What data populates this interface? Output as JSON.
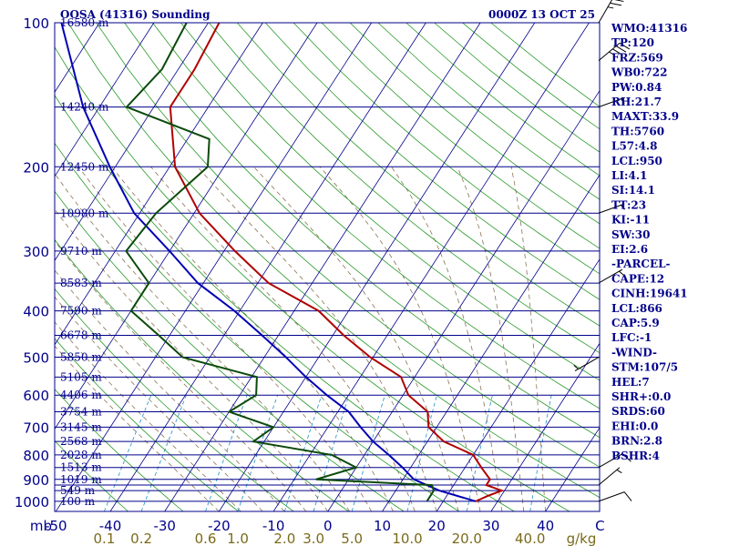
{
  "header": {
    "station": "OOSA (41316) Sounding",
    "valid": "0000Z 13 OCT 25"
  },
  "indices": [
    "WMO:41316",
    "TP:120",
    "FRZ:569",
    "WB0:722",
    "PW:0.84",
    "RH:21.7",
    "MAXT:33.9",
    "TH:5760",
    "L57:4.8",
    "LCL:950",
    "LI:4.1",
    "SI:14.1",
    "TT:23",
    "KI:-11",
    "SW:30",
    "EI:2.6",
    "-PARCEL-",
    "CAPE:12",
    "CINH:19641",
    "LCL:866",
    "CAP:5.9",
    "LFC:-1",
    "-WIND-",
    "STM:107/5",
    "HEL:7",
    "SHR+:0.0",
    "SRDS:60",
    "EHI:0.0",
    "BRN:2.8",
    "BSHR:4"
  ],
  "colors": {
    "frame": "#00008b",
    "isobar": "#00008b",
    "isotherm": "#00008b",
    "dry_adiabat": "#2a9a2a",
    "moist_adiabat": "#8b7355",
    "mixing_ratio": "#1e90c8",
    "temperature": "#b00000",
    "dewpoint": "#0b4a0b",
    "parcel": "#0000b4",
    "mixing_label": "#7a6a1a",
    "wind": "#000000"
  },
  "chart_data": {
    "type": "skew-t",
    "pressure_levels": [
      100,
      150,
      200,
      250,
      300,
      350,
      400,
      450,
      500,
      550,
      600,
      650,
      700,
      750,
      800,
      850,
      900,
      925,
      950,
      1000
    ],
    "pressure_tick_labels": [
      "100",
      "200",
      "300",
      "400",
      "500",
      "600",
      "700",
      "800",
      "900",
      "1000"
    ],
    "height_labels": [
      "16580 m",
      "14240 m",
      "12450 m",
      "10980 m",
      "9710 m",
      "8583 m",
      "7590 m",
      "6678 m",
      "5850 m",
      "5105 m",
      "4406 m",
      "3754 m",
      "3145 m",
      "2568 m",
      "2028 m",
      "1513 m",
      "1019 m",
      "549 m",
      "100 m"
    ],
    "height_label_pressures": [
      100,
      150,
      200,
      250,
      300,
      350,
      400,
      450,
      500,
      550,
      600,
      650,
      700,
      750,
      800,
      850,
      900,
      950,
      1000
    ],
    "x_unit_label": "mb",
    "temperature_tick_labels": [
      "-50",
      "-40",
      "-30",
      "-20",
      "-10",
      "0",
      "10",
      "20",
      "30",
      "40",
      "C"
    ],
    "temperature_tick_values": [
      -50,
      -40,
      -30,
      -20,
      -10,
      0,
      10,
      20,
      30,
      40,
      50
    ],
    "mixing_ratio_labels": [
      "0.1",
      "0.2",
      "0.6",
      "1.0",
      "2.0",
      "3.0",
      "5.0",
      "10.0",
      "20.0",
      "40.0",
      "g/kg"
    ],
    "mixing_ratio_values": [
      0.1,
      0.2,
      0.6,
      1.0,
      2.0,
      3.0,
      5.0,
      10.0,
      20.0,
      40.0
    ],
    "temperature": {
      "pressure": [
        1000,
        975,
        950,
        925,
        900,
        850,
        800,
        750,
        700,
        650,
        600,
        550,
        500,
        450,
        400,
        350,
        300,
        250,
        200,
        150,
        125,
        100
      ],
      "value": [
        26,
        27.5,
        29.5,
        26,
        26,
        23,
        20,
        13,
        8.5,
        6.5,
        1,
        -2.5,
        -10.5,
        -18,
        -25.5,
        -38,
        -48,
        -59,
        -69,
        -77,
        -77,
        -78
      ]
    },
    "dewpoint": {
      "pressure": [
        1000,
        975,
        950,
        925,
        900,
        850,
        800,
        750,
        700,
        650,
        600,
        550,
        500,
        450,
        400,
        350,
        300,
        250,
        200,
        175,
        150,
        125,
        100
      ],
      "value": [
        17,
        17,
        17,
        16,
        -6,
        0,
        -6,
        -22,
        -20,
        -30,
        -27,
        -29,
        -45,
        -52,
        -60,
        -60,
        -68,
        -67,
        -63,
        -66,
        -85,
        -83,
        -84
      ]
    },
    "parcel": {
      "pressure": [
        1000,
        950,
        900,
        850,
        800,
        750,
        700,
        650,
        600,
        550,
        500,
        450,
        400,
        350,
        300,
        250,
        200,
        150,
        100
      ],
      "value": [
        26,
        18,
        12,
        8.5,
        4.5,
        0,
        -4,
        -8,
        -14,
        -20,
        -26,
        -33,
        -41,
        -51,
        -60,
        -71,
        -81,
        -93,
        -107
      ]
    },
    "wind_barbs": {
      "pressure": [
        100,
        120,
        150,
        250,
        350,
        500,
        850,
        925,
        1000
      ],
      "direction_deg": [
        210,
        230,
        250,
        250,
        240,
        60,
        240,
        230,
        250
      ],
      "speed_kt": [
        25,
        35,
        5,
        5,
        5,
        5,
        10,
        5,
        10
      ]
    }
  }
}
